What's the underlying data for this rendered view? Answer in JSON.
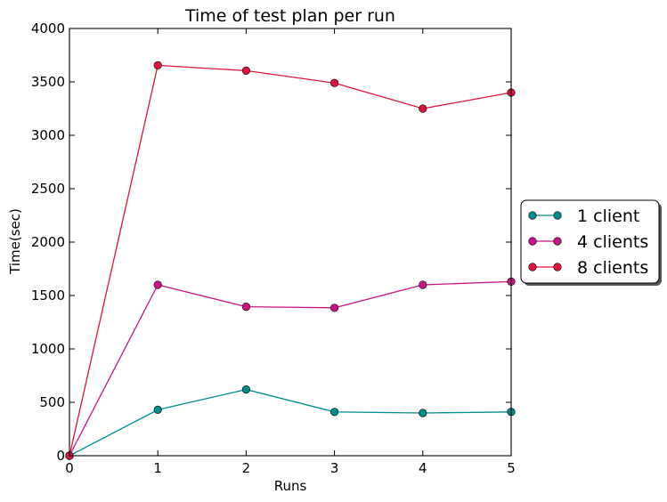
{
  "chart_data": {
    "type": "line",
    "title": "Time of test plan per run",
    "xlabel": "Runs",
    "ylabel": "Time(sec)",
    "x": [
      0,
      1,
      2,
      3,
      4,
      5
    ],
    "xlim": [
      0,
      5
    ],
    "ylim": [
      0,
      4000
    ],
    "xticks": [
      "0",
      "1",
      "2",
      "3",
      "4",
      "5"
    ],
    "yticks": [
      "0",
      "500",
      "1000",
      "1500",
      "2000",
      "2500",
      "3000",
      "3500",
      "4000"
    ],
    "grid": false,
    "legend_position": "right-outside",
    "series": [
      {
        "name": "1 client",
        "color": "#008B8B",
        "values": [
          0,
          430,
          620,
          410,
          400,
          410
        ]
      },
      {
        "name": "4 clients",
        "color": "#C71585",
        "values": [
          0,
          1600,
          1395,
          1385,
          1600,
          1630
        ]
      },
      {
        "name": "8 clients",
        "color": "#DC143C",
        "values": [
          0,
          3655,
          3605,
          3490,
          3250,
          3400
        ]
      }
    ]
  }
}
